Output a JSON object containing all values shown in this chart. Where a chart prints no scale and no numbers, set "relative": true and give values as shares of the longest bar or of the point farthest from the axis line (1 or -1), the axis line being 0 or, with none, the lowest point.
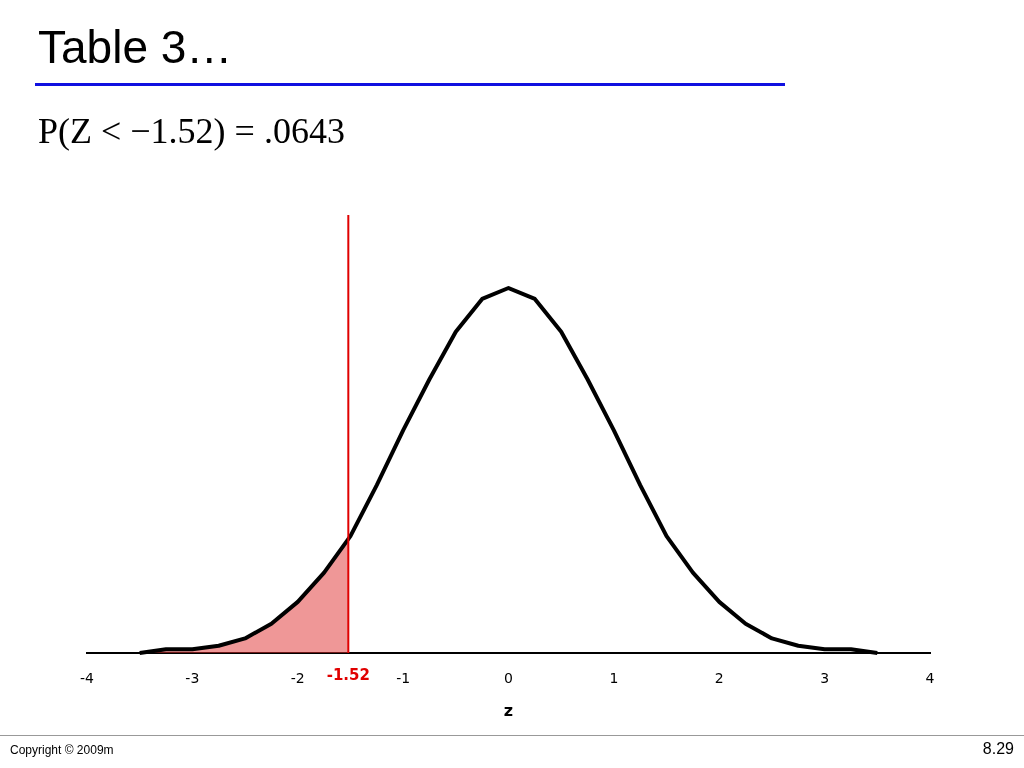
{
  "chart_data": {
    "type": "line",
    "title": "Table 3…",
    "subtitle": "P(Z < −1.52) = .0643",
    "xlabel": "z",
    "relative": true,
    "xlim": [
      -4,
      4
    ],
    "xticks": [
      -4,
      -3,
      -2,
      -1,
      0,
      1,
      2,
      3,
      4
    ],
    "series": [
      {
        "type": "line",
        "color": "#000000",
        "x": [
          -3.5,
          -3.25,
          -3,
          -2.75,
          -2.5,
          -2.25,
          -2,
          -1.75,
          -1.5,
          -1.25,
          -1,
          -0.75,
          -0.5,
          -0.25,
          0,
          0.25,
          0.5,
          0.75,
          1,
          1.25,
          1.5,
          1.75,
          2,
          2.25,
          2.5,
          2.75,
          3,
          3.25,
          3.5
        ],
        "values": [
          0,
          0.01,
          0.01,
          0.02,
          0.04,
          0.08,
          0.14,
          0.22,
          0.32,
          0.46,
          0.61,
          0.75,
          0.88,
          0.97,
          1,
          0.97,
          0.88,
          0.75,
          0.61,
          0.46,
          0.32,
          0.22,
          0.14,
          0.08,
          0.04,
          0.02,
          0.01,
          0.01,
          0
        ]
      },
      {
        "type": "area",
        "color": "#e03030",
        "x": [
          -3.5,
          -3.25,
          -3,
          -2.75,
          -2.5,
          -2.25,
          -2,
          -1.75,
          -1.52
        ],
        "values": [
          0,
          0.01,
          0.01,
          0.02,
          0.04,
          0.08,
          0.14,
          0.22,
          0.31
        ]
      }
    ],
    "ref_lines": [
      {
        "axis": "x",
        "value": -1.52,
        "label": "-1.52",
        "color": "#e00000"
      }
    ],
    "annotations": [
      "Copyright © 2009m",
      "8.29"
    ]
  }
}
